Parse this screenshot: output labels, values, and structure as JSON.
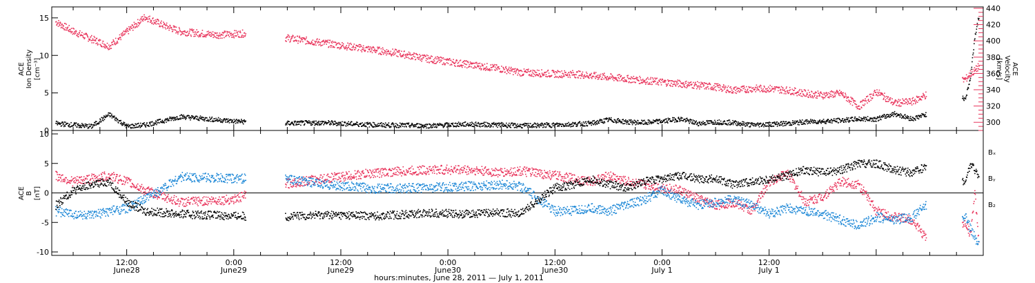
{
  "title": "",
  "xlabel": "hours:minutes, June 28, 2011 — July 1, 2011",
  "colors": {
    "black": "#000000",
    "pink": "#e8325a",
    "blue": "#1a86d6"
  },
  "chart_data": [
    {
      "type": "scatter",
      "panel": "top",
      "ylabel_left": [
        "ACE",
        "Ion Density",
        "[cm⁻³]"
      ],
      "ylabel_right": [
        "ACE",
        "Velocity",
        "[km/s]"
      ],
      "ylim_left": [
        0,
        16
      ],
      "ylim_right": [
        290,
        440
      ],
      "yticks_left": [
        "0",
        "5",
        "10",
        "15"
      ],
      "yticks_right": [
        "300",
        "320",
        "340",
        "360",
        "380",
        "400",
        "420",
        "440"
      ],
      "series": [
        {
          "name": "",
          "axis": "left",
          "color": "#000000",
          "x": [
            4,
            6,
            8,
            10,
            12,
            14,
            18,
            24,
            29,
            34,
            40,
            46,
            50,
            54,
            56,
            60,
            62,
            64,
            66,
            68,
            70,
            72,
            74,
            76,
            78,
            80,
            82,
            84,
            86,
            88,
            90,
            92,
            94,
            96,
            98,
            100,
            101.5,
            106,
            106.5,
            107,
            107.5
          ],
          "y": [
            1.0,
            0.8,
            0.6,
            2.2,
            0.6,
            0.8,
            1.9,
            1.3,
            1.0,
            1.1,
            0.8,
            0.7,
            0.9,
            0.8,
            0.7,
            0.8,
            0.9,
            1.0,
            1.5,
            1.2,
            1.1,
            1.3,
            1.6,
            1.0,
            1.2,
            1.1,
            0.8,
            0.9,
            1.0,
            1.2,
            1.3,
            1.4,
            1.6,
            1.6,
            2.3,
            1.6,
            2.2,
            4.5,
            7.0,
            12.5,
            15.5
          ]
        },
        {
          "name": "",
          "axis": "right",
          "color": "#e8325a",
          "x": [
            4,
            6,
            8,
            10,
            12,
            14,
            16,
            18,
            22,
            26,
            30,
            34,
            38,
            42,
            46,
            50,
            54,
            56,
            60,
            62,
            64,
            66,
            68,
            70,
            72,
            74,
            76,
            78,
            80,
            82,
            84,
            86,
            88,
            90,
            92,
            94,
            96,
            98,
            100,
            101.5,
            106,
            106.5,
            107,
            107.5
          ],
          "y": [
            424,
            412,
            403,
            394,
            412,
            430,
            420,
            412,
            408,
            410,
            404,
            398,
            392,
            386,
            378,
            372,
            366,
            362,
            360,
            360,
            358,
            356,
            354,
            352,
            350,
            348,
            346,
            344,
            340,
            342,
            342,
            340,
            336,
            334,
            336,
            320,
            338,
            324,
            326,
            334,
            354,
            360,
            364,
            370
          ]
        }
      ]
    },
    {
      "type": "scatter",
      "panel": "bottom",
      "ylabel_left": [
        "ACE",
        "B",
        "[nT]"
      ],
      "ylim": [
        -10,
        10
      ],
      "yticks": [
        "-10",
        "-5",
        "0",
        "5",
        "10"
      ],
      "legend": [
        "Bₓ",
        "Bᵧ",
        "B₂"
      ],
      "series": [
        {
          "name": "Bₓ",
          "color": "#000000",
          "x": [
            4,
            6,
            8,
            10,
            12,
            14,
            18,
            24,
            29,
            34,
            40,
            46,
            50,
            54,
            56,
            60,
            62,
            64,
            66,
            68,
            70,
            72,
            74,
            76,
            78,
            80,
            82,
            84,
            86,
            88,
            90,
            92,
            94,
            96,
            98,
            100,
            101.5,
            106,
            106.5,
            107,
            107.5
          ],
          "y": [
            -2.0,
            0.5,
            1.5,
            2.0,
            -1.5,
            -3.0,
            -3.5,
            -3.8,
            -4.0,
            -3.6,
            -3.8,
            -3.3,
            -3.5,
            -3.2,
            -3.5,
            1.0,
            1.5,
            2.5,
            1.5,
            1.0,
            2.0,
            2.5,
            3.0,
            2.5,
            2.5,
            1.5,
            2.0,
            2.5,
            3.0,
            4.0,
            3.5,
            4.0,
            5.0,
            5.0,
            4.0,
            3.5,
            4.5,
            2.0,
            5.0,
            4.0,
            3.0
          ]
        },
        {
          "name": "Bᵧ",
          "color": "#1a86d6",
          "x": [
            4,
            6,
            8,
            10,
            12,
            14,
            18,
            24,
            29,
            34,
            40,
            46,
            50,
            54,
            56,
            60,
            62,
            64,
            66,
            68,
            70,
            72,
            74,
            76,
            78,
            80,
            82,
            84,
            86,
            88,
            90,
            92,
            94,
            96,
            98,
            100,
            101.5,
            106,
            106.5,
            107,
            107.5
          ],
          "y": [
            -3.0,
            -3.5,
            -3.8,
            -3.0,
            -2.5,
            -1.0,
            2.8,
            2.5,
            2.7,
            1.5,
            0.8,
            1.0,
            1.2,
            1.5,
            1.3,
            -3.0,
            -3.0,
            -2.5,
            -3.0,
            -2.0,
            -1.0,
            0.5,
            -1.0,
            -2.0,
            -1.5,
            -1.0,
            -2.0,
            -3.5,
            -2.5,
            -3.0,
            -3.5,
            -4.5,
            -5.5,
            -4.0,
            -4.5,
            -4.0,
            -2.0,
            -4.0,
            -6.0,
            -7.5,
            -9.0
          ]
        },
        {
          "name": "B₂",
          "color": "#e8325a",
          "x": [
            4,
            6,
            8,
            10,
            12,
            14,
            18,
            24,
            29,
            34,
            40,
            46,
            50,
            54,
            56,
            60,
            62,
            64,
            66,
            68,
            70,
            72,
            74,
            76,
            78,
            80,
            82,
            84,
            86,
            88,
            90,
            92,
            94,
            96,
            98,
            100,
            101.5,
            106,
            106.5,
            107,
            107.5
          ],
          "y": [
            3.0,
            2.0,
            2.5,
            3.0,
            2.0,
            0.5,
            -1.5,
            -1.0,
            1.5,
            2.5,
            3.5,
            4.0,
            4.0,
            3.5,
            3.8,
            3.0,
            2.5,
            2.0,
            3.0,
            2.0,
            1.5,
            1.0,
            0.5,
            -1.0,
            -2.0,
            -1.5,
            -3.0,
            2.0,
            3.5,
            -1.5,
            -0.5,
            2.0,
            1.5,
            -3.0,
            -4.0,
            -4.5,
            -7.5,
            -5.0,
            -7.0,
            0.0,
            -9.0
          ]
        }
      ]
    }
  ],
  "x_axis": {
    "range_hours": [
      3.6,
      108
    ],
    "ticks": [
      {
        "hour": 12,
        "label": "12:00",
        "sublabel": "June28"
      },
      {
        "hour": 24,
        "label": "0:00",
        "sublabel": "June29"
      },
      {
        "hour": 36,
        "label": "12:00",
        "sublabel": "June29"
      },
      {
        "hour": 48,
        "label": "0:00",
        "sublabel": "June30"
      },
      {
        "hour": 60,
        "label": "12:00",
        "sublabel": "June30"
      },
      {
        "hour": 72,
        "label": "0:00",
        "sublabel": "July 1"
      },
      {
        "hour": 84,
        "label": "12:00",
        "sublabel": "July 1"
      }
    ]
  }
}
